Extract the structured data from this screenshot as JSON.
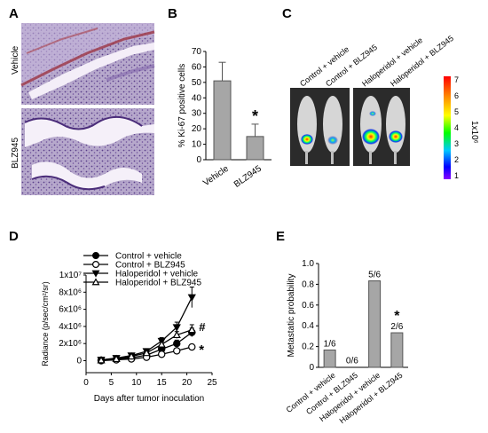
{
  "figure": {
    "panels": [
      {
        "letter": "A",
        "row_labels": [
          "Vehicle",
          "BLZ945"
        ]
      },
      {
        "letter": "B"
      },
      {
        "letter": "C",
        "colorbar_label": "1x10⁶",
        "colorbar_ticks": [
          "7",
          "6",
          "5",
          "4",
          "3",
          "2",
          "1"
        ]
      },
      {
        "letter": "D"
      },
      {
        "letter": "E"
      }
    ],
    "panel_c_labels": [
      "Control + vehicle",
      "Control + BLZ945",
      "Haloperidol + vehicle",
      "Haloperidol + BLZ945"
    ],
    "colors": {
      "bar_fill": "#a6a6a6",
      "axis": "#000000"
    }
  },
  "chart_data": [
    {
      "panel": "B",
      "type": "bar",
      "categories": [
        "Vehicle",
        "BLZ945"
      ],
      "values": [
        51,
        15
      ],
      "errors": [
        12,
        8
      ],
      "ylabel": "% Ki-67 positive cells",
      "ylim": [
        0,
        70
      ],
      "yticks": [
        "0",
        "10",
        "20",
        "30",
        "40",
        "50",
        "60",
        "70"
      ],
      "annotations": [
        {
          "category": "BLZ945",
          "text": "*"
        }
      ]
    },
    {
      "panel": "D",
      "type": "line",
      "xlabel": "Days after tumor inoculation",
      "ylabel": "Radiance (p/sec/cm²/sr)",
      "xlim": [
        0,
        25
      ],
      "ylim": [
        -1.4,
        10
      ],
      "xticks": [
        "0",
        "5",
        "10",
        "15",
        "20",
        "25"
      ],
      "yticks": [
        {
          "value": 0,
          "label": "0"
        },
        {
          "value": 2,
          "label": "2x10⁶"
        },
        {
          "value": 4,
          "label": "4x10⁶"
        },
        {
          "value": 6,
          "label": "6x10⁶"
        },
        {
          "value": 8,
          "label": "8x10⁶"
        },
        {
          "value": 10,
          "label": "1x10⁷"
        }
      ],
      "legend_position": "top",
      "x": [
        3,
        6,
        9,
        12,
        15,
        18,
        21
      ],
      "series": [
        {
          "name": "Control + vehicle",
          "marker": "circle-filled",
          "values": [
            0.05,
            0.15,
            0.35,
            0.65,
            1.35,
            2.0,
            3.3
          ],
          "errors": [
            0.1,
            0.1,
            0.15,
            0.2,
            0.3,
            0.4,
            0.5
          ]
        },
        {
          "name": "Control +  BLZ945",
          "marker": "circle-open",
          "values": [
            0.0,
            0.1,
            0.2,
            0.4,
            0.75,
            1.15,
            1.6
          ],
          "errors": [
            0.1,
            0.1,
            0.1,
            0.15,
            0.2,
            0.25,
            0.3
          ]
        },
        {
          "name": "Haloperidol + vehicle",
          "marker": "triangle-down-filled",
          "values": [
            0.1,
            0.3,
            0.6,
            1.1,
            2.3,
            3.9,
            7.4
          ],
          "errors": [
            0.1,
            0.15,
            0.2,
            0.3,
            0.4,
            0.6,
            1.2
          ]
        },
        {
          "name": "Haloperidol + BLZ945",
          "marker": "triangle-up-open",
          "values": [
            0.05,
            0.2,
            0.5,
            0.9,
            1.9,
            3.0,
            3.6
          ],
          "errors": [
            0.1,
            0.1,
            0.15,
            0.2,
            0.3,
            0.4,
            0.6
          ]
        }
      ],
      "annotations": [
        {
          "text": "#",
          "near": "Haloperidol + BLZ945"
        },
        {
          "text": "*",
          "near": "Control +  BLZ945"
        }
      ]
    },
    {
      "panel": "E",
      "type": "bar",
      "categories": [
        "Control + vehicle",
        "Control + BLZ945",
        "Haloperidol + vehicle",
        "Haloperidol + BLZ945"
      ],
      "values": [
        0.167,
        0,
        0.833,
        0.333
      ],
      "value_labels": [
        "1/6",
        "0/6",
        "5/6",
        "2/6"
      ],
      "ylabel": "Metastatic probability",
      "ylim": [
        0,
        1.0
      ],
      "yticks": [
        "0",
        "0.2",
        "0.4",
        "0.6",
        "0.8",
        "1.0"
      ],
      "annotations": [
        {
          "category": "Haloperidol + BLZ945",
          "text": "*"
        }
      ]
    }
  ]
}
